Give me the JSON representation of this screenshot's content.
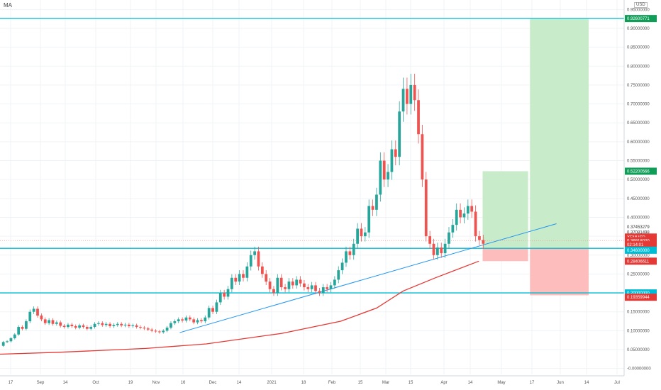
{
  "header": {
    "indicator_label": "MA",
    "currency_label": "USD"
  },
  "colors": {
    "up": "#26a69a",
    "down": "#ef5350",
    "ma": "#e53935",
    "trend": "#2196f3",
    "level": "#00bcd4",
    "profit_fill": "#c8ebc9",
    "loss_fill": "#fdbdbd",
    "tag_green": "#0f9d58",
    "tag_red": "#e53935",
    "tag_cyan": "#00bcd4",
    "tag_gray": "#78909c"
  },
  "chart_data": {
    "type": "candlestick",
    "symbol": "XEMUSD",
    "y_ticks": [
      "0.00000000",
      "0.05000000",
      "0.10000000",
      "0.15000000",
      "0.20000000",
      "0.25000000",
      "0.30000000",
      "0.35000000",
      "0.40000000",
      "0.45000000",
      "0.50000000",
      "0.55000000",
      "0.60000000",
      "0.65000000",
      "0.70000000",
      "0.75000000",
      "0.80000000",
      "0.85000000",
      "0.90000000",
      "0.95000000"
    ],
    "x_ticks": [
      "17",
      "Sep",
      "14",
      "Oct",
      "19",
      "Nov",
      "16",
      "Dec",
      "14",
      "2021",
      "18",
      "Feb",
      "15",
      "Mar",
      "15",
      "Apr",
      "14",
      "May",
      "17",
      "Jun",
      "14",
      "Jul"
    ],
    "ylim": [
      -0.01,
      0.96
    ],
    "price_tags": [
      {
        "label": "0.92600771",
        "value": 0.926,
        "color": "tag_green"
      },
      {
        "label": "0.52200566",
        "value": 0.522,
        "color": "tag_green"
      },
      {
        "label": "0.37453279",
        "value": 0.3745,
        "color": "none"
      },
      {
        "label": "0.37081498",
        "value": 0.3608,
        "color": "none"
      },
      {
        "label": "XEMUSD",
        "value": 0.3478,
        "color": "tag_red"
      },
      {
        "label": "0.36918020",
        "value": 0.3385,
        "color": "tag_red"
      },
      {
        "label": "02:14:01",
        "value": 0.3275,
        "color": "tag_red"
      },
      {
        "label": "0.34600000",
        "value": 0.313,
        "color": "tag_cyan"
      },
      {
        "label": "0.28406611",
        "value": 0.284,
        "color": "tag_red"
      },
      {
        "label": "0.20000000",
        "value": 0.2,
        "color": "tag_cyan"
      },
      {
        "label": "0.19359944",
        "value": 0.1885,
        "color": "tag_red"
      }
    ],
    "horizontal_levels": [
      0.926,
      0.318,
      0.2
    ],
    "trend_line": [
      [
        "Nov 17",
        0.095
      ],
      [
        "Jun 4",
        0.383
      ]
    ],
    "positions": [
      {
        "side": "long",
        "start": "Apr 26",
        "end": "May 20",
        "entry": 0.318,
        "target": 0.522,
        "stop": 0.284
      },
      {
        "side": "long",
        "start": "May 21",
        "end": "Jun 21",
        "entry": 0.318,
        "target": 0.926,
        "stop": 0.1936
      }
    ],
    "ma": [
      [
        "Aug 3",
        0.036
      ],
      [
        "Sep 14",
        0.043
      ],
      [
        "Oct 30",
        0.053
      ],
      [
        "Dec 1",
        0.065
      ],
      [
        "Jan 10",
        0.093
      ],
      [
        "Feb 10",
        0.125
      ],
      [
        "Mar 1",
        0.16
      ],
      [
        "Mar 15",
        0.205
      ],
      [
        "Apr 1",
        0.24
      ],
      [
        "Apr 24",
        0.284
      ]
    ],
    "candles": [
      [
        0.06,
        0.07
      ],
      [
        0.07,
        0.072
      ],
      [
        0.072,
        0.08
      ],
      [
        0.08,
        0.09
      ],
      [
        0.09,
        0.11
      ],
      [
        0.11,
        0.105
      ],
      [
        0.105,
        0.125
      ],
      [
        0.125,
        0.15
      ],
      [
        0.15,
        0.158
      ],
      [
        0.158,
        0.14
      ],
      [
        0.14,
        0.13
      ],
      [
        0.13,
        0.12
      ],
      [
        0.12,
        0.128
      ],
      [
        0.128,
        0.118
      ],
      [
        0.118,
        0.122
      ],
      [
        0.122,
        0.113
      ],
      [
        0.113,
        0.11
      ],
      [
        0.11,
        0.116
      ],
      [
        0.116,
        0.112
      ],
      [
        0.112,
        0.108
      ],
      [
        0.108,
        0.114
      ],
      [
        0.114,
        0.11
      ],
      [
        0.11,
        0.105
      ],
      [
        0.105,
        0.11
      ],
      [
        0.11,
        0.118
      ],
      [
        0.118,
        0.12
      ],
      [
        0.12,
        0.115
      ],
      [
        0.115,
        0.118
      ],
      [
        0.118,
        0.112
      ],
      [
        0.112,
        0.115
      ],
      [
        0.115,
        0.118
      ],
      [
        0.118,
        0.114
      ],
      [
        0.114,
        0.116
      ],
      [
        0.116,
        0.112
      ],
      [
        0.112,
        0.114
      ],
      [
        0.114,
        0.11
      ],
      [
        0.11,
        0.108
      ],
      [
        0.108,
        0.106
      ],
      [
        0.106,
        0.103
      ],
      [
        0.103,
        0.1
      ],
      [
        0.1,
        0.098
      ],
      [
        0.098,
        0.096
      ],
      [
        0.096,
        0.1
      ],
      [
        0.1,
        0.108
      ],
      [
        0.108,
        0.12
      ],
      [
        0.12,
        0.125
      ],
      [
        0.125,
        0.13
      ],
      [
        0.13,
        0.127
      ],
      [
        0.127,
        0.135
      ],
      [
        0.135,
        0.13
      ],
      [
        0.13,
        0.122
      ],
      [
        0.122,
        0.128
      ],
      [
        0.128,
        0.125
      ],
      [
        0.125,
        0.135
      ],
      [
        0.135,
        0.16
      ],
      [
        0.16,
        0.15
      ],
      [
        0.15,
        0.175
      ],
      [
        0.175,
        0.2
      ],
      [
        0.2,
        0.19
      ],
      [
        0.19,
        0.21
      ],
      [
        0.21,
        0.24
      ],
      [
        0.24,
        0.23
      ],
      [
        0.23,
        0.25
      ],
      [
        0.25,
        0.24
      ],
      [
        0.24,
        0.27
      ],
      [
        0.27,
        0.3
      ],
      [
        0.3,
        0.31
      ],
      [
        0.31,
        0.27
      ],
      [
        0.27,
        0.25
      ],
      [
        0.25,
        0.23
      ],
      [
        0.23,
        0.21
      ],
      [
        0.21,
        0.2
      ],
      [
        0.2,
        0.24
      ],
      [
        0.24,
        0.215
      ],
      [
        0.215,
        0.21
      ],
      [
        0.21,
        0.23
      ],
      [
        0.23,
        0.22
      ],
      [
        0.22,
        0.235
      ],
      [
        0.235,
        0.225
      ],
      [
        0.225,
        0.215
      ],
      [
        0.215,
        0.21
      ],
      [
        0.21,
        0.22
      ],
      [
        0.22,
        0.205
      ],
      [
        0.205,
        0.2
      ],
      [
        0.2,
        0.215
      ],
      [
        0.215,
        0.21
      ],
      [
        0.21,
        0.22
      ],
      [
        0.22,
        0.235
      ],
      [
        0.235,
        0.26
      ],
      [
        0.26,
        0.28
      ],
      [
        0.28,
        0.31
      ],
      [
        0.31,
        0.3
      ],
      [
        0.3,
        0.33
      ],
      [
        0.33,
        0.37
      ],
      [
        0.37,
        0.35
      ],
      [
        0.35,
        0.36
      ],
      [
        0.36,
        0.43
      ],
      [
        0.43,
        0.42
      ],
      [
        0.42,
        0.46
      ],
      [
        0.46,
        0.55
      ],
      [
        0.55,
        0.5
      ],
      [
        0.5,
        0.52
      ],
      [
        0.52,
        0.58
      ],
      [
        0.58,
        0.56
      ],
      [
        0.56,
        0.68
      ],
      [
        0.68,
        0.74
      ],
      [
        0.74,
        0.7
      ],
      [
        0.7,
        0.75
      ],
      [
        0.75,
        0.71
      ],
      [
        0.71,
        0.62
      ],
      [
        0.62,
        0.5
      ],
      [
        0.5,
        0.35
      ],
      [
        0.35,
        0.33
      ],
      [
        0.33,
        0.3
      ],
      [
        0.3,
        0.32
      ],
      [
        0.32,
        0.305
      ],
      [
        0.305,
        0.33
      ],
      [
        0.33,
        0.36
      ],
      [
        0.36,
        0.38
      ],
      [
        0.38,
        0.42
      ],
      [
        0.42,
        0.4
      ],
      [
        0.4,
        0.41
      ],
      [
        0.41,
        0.43
      ],
      [
        0.43,
        0.415
      ],
      [
        0.415,
        0.35
      ],
      [
        0.35,
        0.34
      ],
      [
        0.34,
        0.33
      ]
    ],
    "candles_note": "open/close pairs, one per daily bar, approximate"
  }
}
